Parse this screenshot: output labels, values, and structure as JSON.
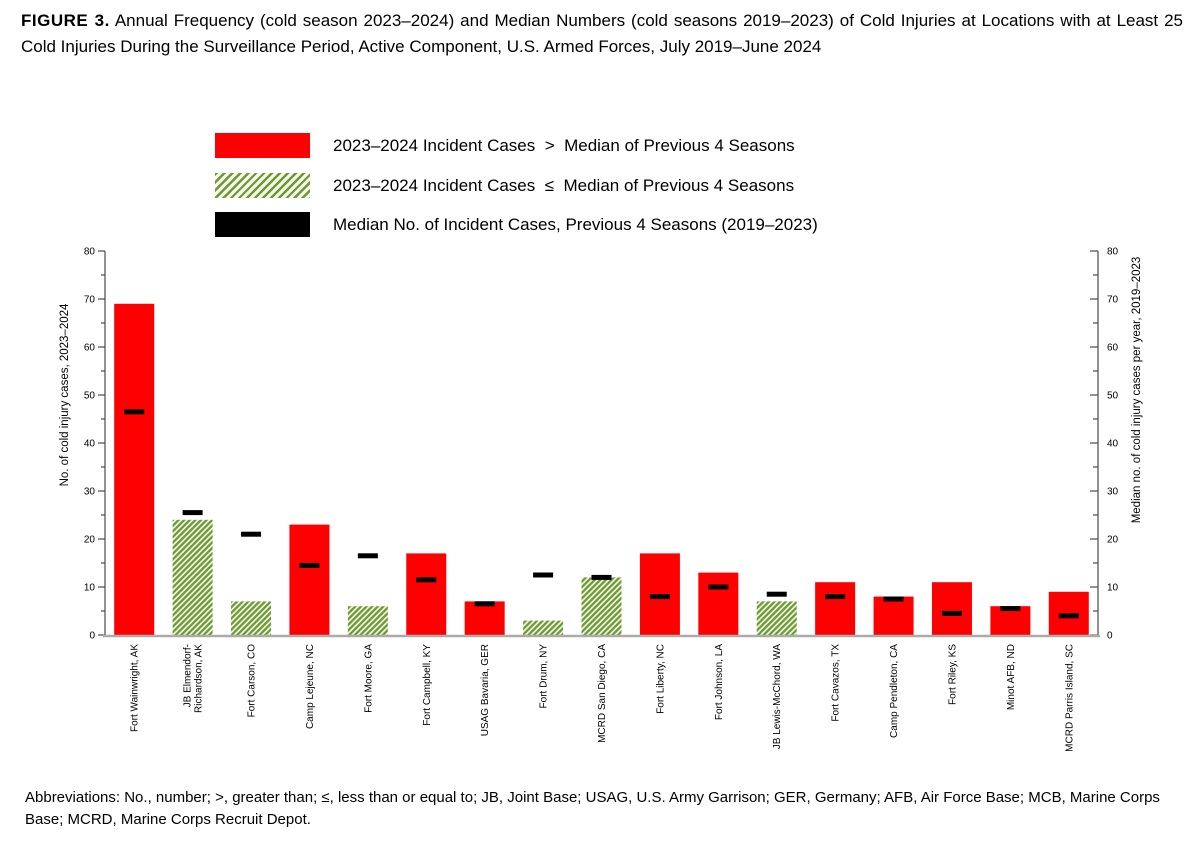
{
  "title": {
    "label": "FIGURE 3.",
    "text": "Annual Frequency (cold season 2023–2024) and Median Numbers (cold seasons 2019–2023) of Cold Injuries at Locations with at Least 25 Cold Injuries During the Surveillance Period, Active Component, U.S. Armed Forces, July 2019–June 2024"
  },
  "legend": {
    "items": [
      {
        "swatch": "solid-red",
        "label": "2023–2024 Incident Cases  >  Median of Previous 4 Seasons"
      },
      {
        "swatch": "hatched-green",
        "label": "2023–2024 Incident Cases  ≤  Median of Previous 4 Seasons"
      },
      {
        "swatch": "solid-black",
        "label": "Median No. of Incident Cases, Previous 4 Seasons (2019–2023)"
      }
    ]
  },
  "chart_data": {
    "type": "bar",
    "categories": [
      "Fort Wainwright, AK",
      "JB Elmendorf-\nRichardson, AK",
      "Fort Carson, CO",
      "Camp Lejeune, NC",
      "Fort Moore, GA",
      "Fort Campbell, KY",
      "USAG Bavaria, GER",
      "Fort Drum, NY",
      "MCRD San Diego, CA",
      "Fort Liberty, NC",
      "Fort Johnson, LA",
      "JB Lewis-McChord, WA",
      "Fort Cavazos, TX",
      "Camp Pendleton, CA",
      "Fort Riley, KS",
      "Minot AFB, ND",
      "MCRD Parris Island, SC"
    ],
    "series": [
      {
        "name": "2023–2024 incident cases",
        "values": [
          69,
          24,
          7,
          23,
          6,
          17,
          7,
          3,
          12,
          17,
          13,
          7,
          11,
          8,
          11,
          6,
          9
        ]
      },
      {
        "name": "Median no. of incident cases, previous 4 seasons (2019–2023)",
        "values": [
          46.5,
          25.5,
          21,
          14.5,
          16.5,
          11.5,
          6.5,
          12.5,
          12,
          8,
          10,
          8.5,
          8,
          7.5,
          4.5,
          5.5,
          4
        ],
        "marker": "black-dash"
      }
    ],
    "above_median": [
      true,
      false,
      false,
      true,
      false,
      true,
      true,
      false,
      false,
      true,
      true,
      false,
      true,
      true,
      true,
      true,
      true
    ],
    "ylabel_left": "No. of cold injury cases, 2023–2024",
    "ylabel_right": "Median no. of cold injury cases per year, 2019–2023",
    "ylim": [
      0,
      80
    ],
    "ytick_step": 10,
    "yminor_step": 5,
    "grid": false,
    "legend_position": "top",
    "colors": {
      "bar_above_median": "#FF0000",
      "hatch_stripe": "#6B9A32",
      "hatch_background": "#F7F7EC",
      "median_marker": "#000000",
      "axis": "#4a4a4a",
      "baseline": "#ABABAB"
    }
  },
  "footer": {
    "text": "Abbreviations: No., number; >, greater than; ≤, less than or equal to; JB, Joint Base; USAG, U.S. Army Garrison; GER, Germany; AFB, Air Force Base; MCB, Marine Corps Base; MCRD, Marine Corps Recruit Depot."
  }
}
